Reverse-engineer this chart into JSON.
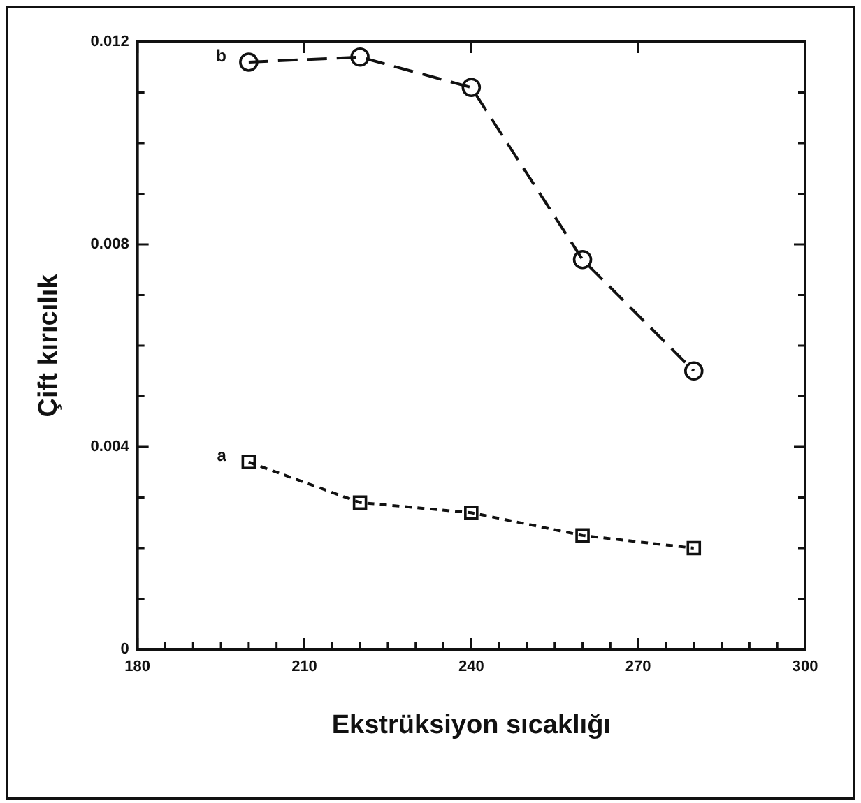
{
  "chart_data": {
    "type": "line",
    "xlabel": "Ekstrüksiyon sıcaklığı",
    "ylabel": "Çift kırıcılık",
    "xlim": [
      180,
      300
    ],
    "xticks": [
      180,
      {
        "value": 185,
        "label": null
      },
      {
        "value": 190,
        "label": null
      },
      {
        "value": 195,
        "label": null
      },
      {
        "value": 200,
        "label": null
      },
      {
        "value": 205,
        "label": null
      },
      210,
      {
        "value": 215,
        "label": null
      },
      {
        "value": 220,
        "label": null
      },
      {
        "value": 225,
        "label": null
      },
      {
        "value": 230,
        "label": null
      },
      {
        "value": 235,
        "label": null
      },
      240,
      {
        "value": 245,
        "label": null
      },
      {
        "value": 250,
        "label": null
      },
      {
        "value": 255,
        "label": null
      },
      {
        "value": 260,
        "label": null
      },
      {
        "value": 265,
        "label": null
      },
      270,
      {
        "value": 275,
        "label": null
      },
      {
        "value": 280,
        "label": null
      },
      {
        "value": 285,
        "label": null
      },
      {
        "value": 290,
        "label": null
      },
      {
        "value": 295,
        "label": null
      },
      300
    ],
    "ylim": [
      0,
      0.012
    ],
    "yticks": [
      0,
      {
        "value": 0.001,
        "label": null
      },
      {
        "value": 0.002,
        "label": null
      },
      {
        "value": 0.003,
        "label": null
      },
      0.004,
      {
        "value": 0.005,
        "label": null
      },
      {
        "value": 0.006,
        "label": null
      },
      {
        "value": 0.007,
        "label": null
      },
      0.008,
      {
        "value": 0.009,
        "label": null
      },
      {
        "value": 0.01,
        "label": null
      },
      {
        "value": 0.011,
        "label": null
      },
      0.012
    ],
    "grid": false,
    "legend": false,
    "series": [
      {
        "name": "b",
        "color": "#111111",
        "marker": "circle",
        "line_style": "dashed",
        "x": [
          200,
          220,
          240,
          260,
          280
        ],
        "values": [
          0.0116,
          0.0117,
          0.0111,
          0.0077,
          0.0055
        ]
      },
      {
        "name": "a",
        "color": "#111111",
        "marker": "square",
        "line_style": "dotted",
        "x": [
          200,
          220,
          240,
          260,
          280
        ],
        "values": [
          0.0037,
          0.0029,
          0.0027,
          0.00225,
          0.002
        ]
      }
    ]
  }
}
